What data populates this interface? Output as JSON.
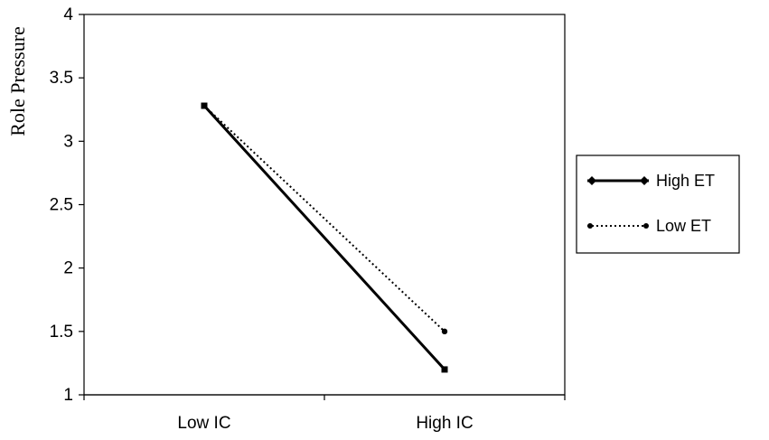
{
  "chart_data": {
    "type": "line",
    "categories": [
      "Low IC",
      "High IC"
    ],
    "series": [
      {
        "name": "High ET",
        "values": [
          3.28,
          1.2
        ],
        "style": "solid",
        "marker": "diamond",
        "color": "#000000"
      },
      {
        "name": "Low ET",
        "values": [
          3.28,
          1.5
        ],
        "style": "dotted",
        "marker": "circle",
        "color": "#000000"
      }
    ],
    "ylabel": "Role Pressure",
    "xlabel": "",
    "ylim": [
      1,
      4
    ],
    "yticks": [
      "1",
      "1.5",
      "2",
      "2.5",
      "3",
      "3.5",
      "4"
    ],
    "grid": false,
    "legend_position": "right"
  }
}
